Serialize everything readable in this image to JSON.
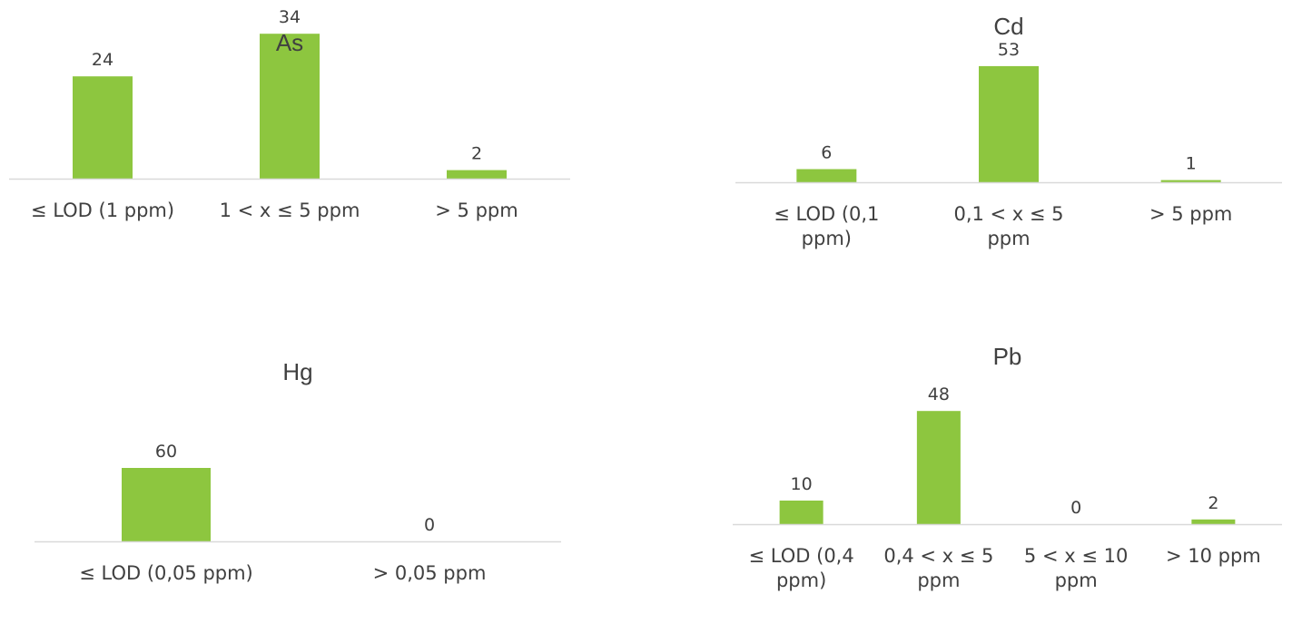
{
  "bar_color": "#8DC63F",
  "axis_color": "#d9d9d9",
  "text_color": "#404040",
  "chart_data": [
    {
      "type": "bar",
      "title": "As",
      "categories": [
        "≤ LOD (1 ppm)",
        "1 < x ≤ 5 ppm",
        "> 5 ppm"
      ],
      "values": [
        24,
        34,
        2
      ],
      "ylim": [
        0,
        40
      ],
      "grid": false,
      "legend": "none"
    },
    {
      "type": "bar",
      "title": "Cd",
      "categories": [
        "≤  LOD (0,1 ppm)",
        "0,1 < x ≤ 5 ppm",
        "> 5 ppm"
      ],
      "values": [
        6,
        53,
        1
      ],
      "ylim": [
        0,
        60
      ],
      "grid": false,
      "legend": "none"
    },
    {
      "type": "bar",
      "title": "Hg",
      "categories": [
        "≤ LOD (0,05 ppm)",
        "> 0,05 ppm"
      ],
      "values": [
        60,
        0
      ],
      "ylim": [
        0,
        80
      ],
      "grid": false,
      "legend": "none"
    },
    {
      "type": "bar",
      "title": "Pb",
      "categories": [
        "≤ LOD (0,4 ppm)",
        "0,4 < x ≤ 5 ppm",
        "5 < x ≤ 10 ppm",
        "> 10 ppm"
      ],
      "values": [
        10,
        48,
        0,
        2
      ],
      "ylim": [
        0,
        50
      ],
      "grid": false,
      "legend": "none"
    }
  ]
}
